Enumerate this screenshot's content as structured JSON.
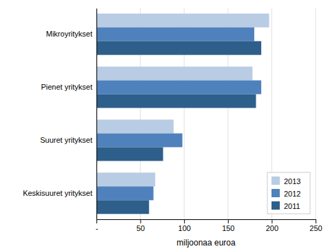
{
  "chart_data": {
    "type": "bar",
    "orientation": "horizontal",
    "categories": [
      "Mikroyritykset",
      "Pienet yritykset",
      "Suuret yritykset",
      "Keskisuuret yritykset"
    ],
    "series": [
      {
        "name": "2013",
        "color": "#b8cce4",
        "values": [
          197,
          178,
          88,
          67
        ]
      },
      {
        "name": "2012",
        "color": "#4f81bd",
        "values": [
          180,
          188,
          98,
          65
        ]
      },
      {
        "name": "2011",
        "color": "#2e5f8a",
        "values": [
          188,
          182,
          76,
          60
        ]
      }
    ],
    "xlabel": "miljoonaa euroa",
    "xlim": [
      0,
      250
    ],
    "xticks": [
      {
        "value": 0,
        "label": "-"
      },
      50,
      100,
      150,
      200,
      250
    ],
    "grid": true,
    "legend": "lower right"
  }
}
